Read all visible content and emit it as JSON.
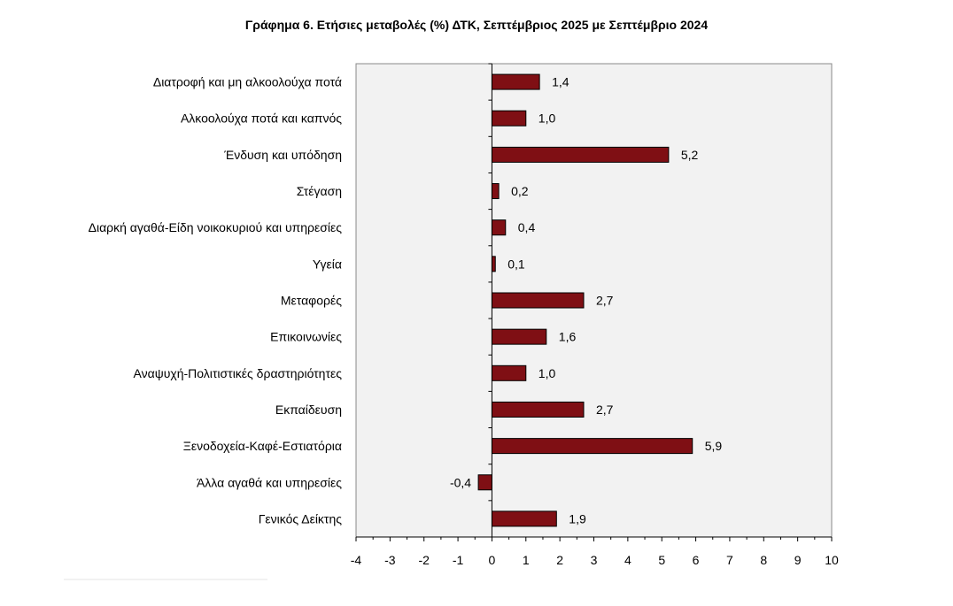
{
  "chart_data": {
    "type": "bar",
    "orientation": "horizontal",
    "title": "Γράφημα 6. Ετήσιες μεταβολές (%) ΔΤΚ, Σεπτέμβριος 2025 με Σεπτέμβριο 2024",
    "categories": [
      "Διατροφή και μη αλκοολούχα ποτά",
      "Αλκοολούχα ποτά και καπνός",
      "Ένδυση και υπόδηση",
      "Στέγαση",
      "Διαρκή αγαθά-Είδη νοικοκυριού και υπηρεσίες",
      "Υγεία",
      "Μεταφορές",
      "Επικοινωνίες",
      "Αναψυχή-Πολιτιστικές δραστηριότητες",
      "Εκπαίδευση",
      "Ξενοδοχεία-Καφέ-Εστιατόρια",
      "Άλλα αγαθά και υπηρεσίες",
      "Γενικός Δείκτης"
    ],
    "values": [
      1.4,
      1.0,
      5.2,
      0.2,
      0.4,
      0.1,
      2.7,
      1.6,
      1.0,
      2.7,
      5.9,
      -0.4,
      1.9
    ],
    "value_labels": [
      "1,4",
      "1,0",
      "5,2",
      "0,2",
      "0,4",
      "0,1",
      "2,7",
      "1,6",
      "1,0",
      "2,7",
      "5,9",
      "-0,4",
      "1,9"
    ],
    "xlim": [
      -4,
      10
    ],
    "xticks": [
      "-4",
      "-3",
      "-2",
      "-1",
      "0",
      "1",
      "2",
      "3",
      "4",
      "5",
      "6",
      "7",
      "8",
      "9",
      "10"
    ],
    "xlabel": "",
    "ylabel": "",
    "grid": false,
    "bar_color": "#7f0f14",
    "plot_background": "#f2f2f2"
  }
}
